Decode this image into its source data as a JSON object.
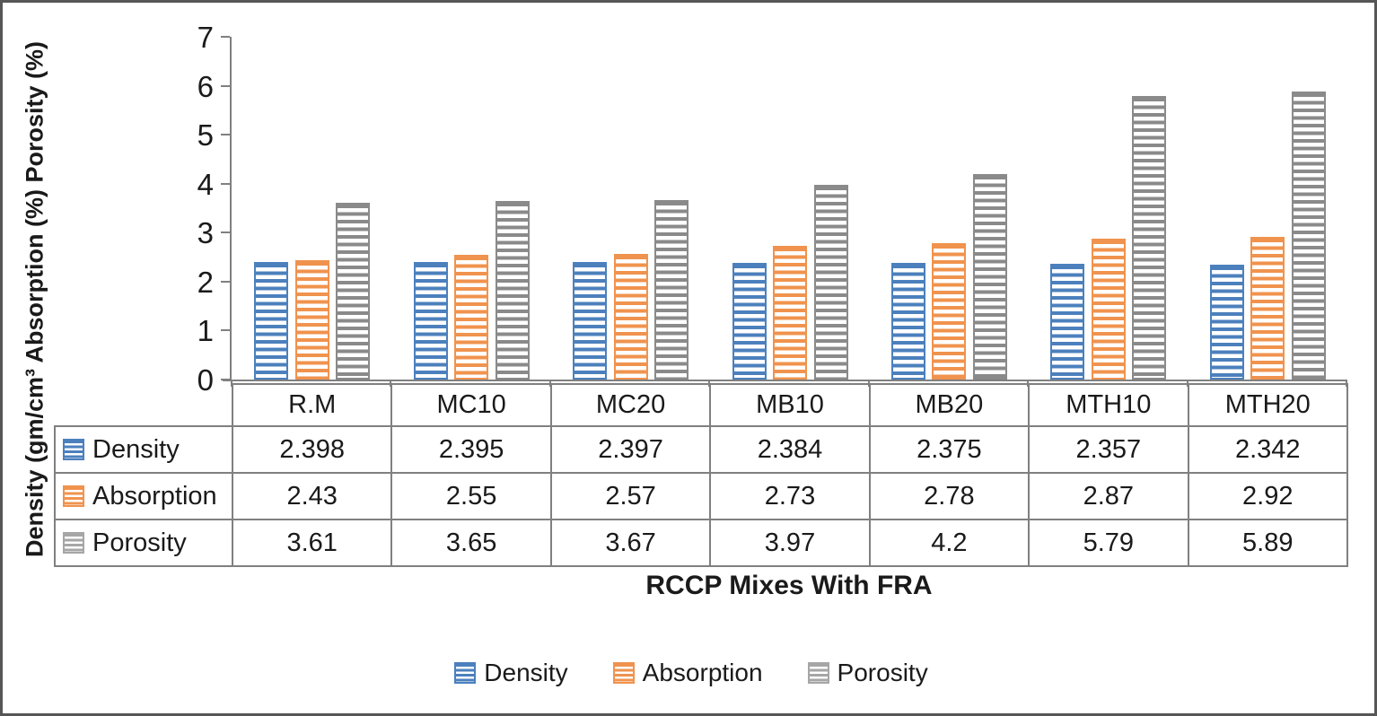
{
  "chart_data": {
    "type": "bar",
    "title": "",
    "categories": [
      "R.M",
      "MC10",
      "MC20",
      "MB10",
      "MB20",
      "MTH10",
      "MTH20"
    ],
    "series": [
      {
        "name": "Density",
        "color": "#4C80BD",
        "swatch_color": "#4C80BD",
        "values": [
          2.398,
          2.395,
          2.397,
          2.384,
          2.375,
          2.357,
          2.342
        ]
      },
      {
        "name": "Absorption",
        "color": "#F0934E",
        "swatch_color": "#F0934E",
        "values": [
          2.43,
          2.55,
          2.57,
          2.73,
          2.78,
          2.87,
          2.92
        ]
      },
      {
        "name": "Porosity",
        "color": "#8A8A8A",
        "swatch_color": "#A6A6A6",
        "values": [
          3.61,
          3.65,
          3.67,
          3.97,
          4.2,
          5.79,
          5.89
        ]
      }
    ],
    "xlabel": "RCCP Mixes With FRA",
    "ylabel": "Density (gm/cm³ Absorption (%) Porosity (%)",
    "ylim": [
      0,
      7
    ],
    "ytick_interval": 1,
    "yticks": [
      "0",
      "1",
      "2",
      "3",
      "4",
      "5",
      "6",
      "7"
    ],
    "grid": false,
    "legend_position": "bottom",
    "legend_labels": [
      "Density",
      "Absorption",
      "Porosity"
    ],
    "bar_fill_pattern": "horizontal-stripes",
    "axis_color": "#808080",
    "text_color": "#1a1a1a",
    "data_table_shown": true
  }
}
